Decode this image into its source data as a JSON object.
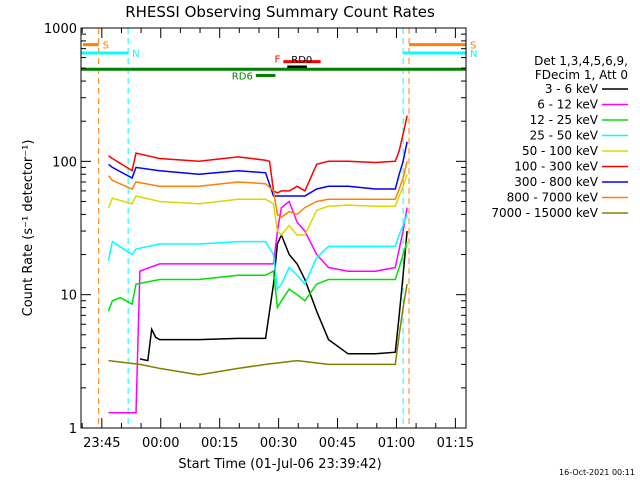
{
  "chart_data": {
    "type": "line",
    "title": "RHESSI Observing Summary Count Rates",
    "xlabel": "Start Time (01-Jul-06 23:39:42)",
    "ylabel": "Count Rate (s⁻¹ detector⁻¹)",
    "yscale": "log",
    "ylim": [
      1,
      1000
    ],
    "x_unit": "minutes after 23:39:42",
    "xlim": [
      0,
      98
    ],
    "x_ticks": [
      {
        "label": "23:45",
        "x": 5.3
      },
      {
        "label": "00:00",
        "x": 20.3
      },
      {
        "label": "00:15",
        "x": 35.3
      },
      {
        "label": "00:30",
        "x": 50.3
      },
      {
        "label": "00:45",
        "x": 65.3
      },
      {
        "label": "01:00",
        "x": 80.3
      },
      {
        "label": "01:15",
        "x": 95.3
      }
    ],
    "y_ticks": [
      {
        "label": "1",
        "y": 1
      },
      {
        "label": "10",
        "y": 10
      },
      {
        "label": "100",
        "y": 100
      },
      {
        "label": "1000",
        "y": 1000
      }
    ],
    "legend": {
      "header": [
        "Det 1,3,4,5,6,9,",
        "FDecim 1, Att 0"
      ],
      "placement": "right"
    },
    "series": [
      {
        "name": "3 - 6 keV",
        "color": "#000000",
        "x": [
          15,
          17,
          18,
          19,
          20,
          30,
          40,
          47,
          49,
          50,
          51,
          53,
          55,
          57,
          60,
          63,
          68,
          75,
          80,
          81,
          82,
          83
        ],
        "y": [
          3.3,
          3.2,
          5.5,
          4.8,
          4.6,
          4.6,
          4.7,
          4.7,
          12,
          24,
          28,
          20,
          17,
          13,
          7.5,
          4.6,
          3.6,
          3.6,
          3.7,
          7,
          14,
          30
        ]
      },
      {
        "name": "6 - 12 keV",
        "color": "#ff00ff",
        "x": [
          7,
          14,
          15,
          20,
          30,
          40,
          47,
          49,
          50,
          51,
          53,
          55,
          57,
          60,
          63,
          68,
          75,
          80,
          81,
          82,
          83
        ],
        "y": [
          1.3,
          1.3,
          15,
          17,
          17,
          17,
          17,
          17,
          30,
          45,
          50,
          35,
          30,
          20,
          16,
          15,
          15,
          16,
          22,
          30,
          45
        ]
      },
      {
        "name": "12 - 25 keV",
        "color": "#00e000",
        "x": [
          7,
          8,
          10,
          13,
          14,
          20,
          30,
          40,
          47,
          49,
          50,
          51,
          53,
          55,
          57,
          60,
          63,
          68,
          75,
          80,
          81,
          82,
          83
        ],
        "y": [
          7.5,
          9,
          9.5,
          8.5,
          12,
          13,
          13,
          14,
          14,
          15,
          8,
          9,
          11,
          10,
          9,
          12,
          13,
          13,
          13,
          13,
          16,
          20,
          25
        ]
      },
      {
        "name": "25 - 50 keV",
        "color": "#00ffff",
        "x": [
          7,
          8,
          13,
          14,
          20,
          30,
          40,
          47,
          49,
          50,
          51,
          53,
          55,
          57,
          60,
          63,
          68,
          75,
          80,
          81,
          82,
          83
        ],
        "y": [
          18,
          25,
          20,
          22,
          24,
          24,
          25,
          25,
          20,
          11,
          12,
          16,
          14,
          12,
          19,
          23,
          23,
          23,
          23,
          28,
          33,
          40
        ]
      },
      {
        "name": "50 - 100 keV",
        "color": "#d8d800",
        "x": [
          7,
          8,
          13,
          14,
          20,
          30,
          40,
          47,
          49,
          50,
          51,
          53,
          55,
          57,
          60,
          63,
          68,
          75,
          80,
          81,
          82,
          83
        ],
        "y": [
          45,
          53,
          48,
          55,
          50,
          48,
          52,
          52,
          48,
          30,
          28,
          33,
          28,
          28,
          43,
          46,
          47,
          46,
          46,
          55,
          65,
          80
        ]
      },
      {
        "name": "100 - 300 keV",
        "color": "#ff0000",
        "x": [
          7,
          8,
          13,
          14,
          20,
          30,
          40,
          47,
          48,
          49,
          50,
          51,
          53,
          55,
          57,
          60,
          63,
          68,
          75,
          80,
          81,
          82,
          83
        ],
        "y": [
          110,
          105,
          85,
          115,
          105,
          100,
          108,
          102,
          100,
          60,
          58,
          60,
          60,
          65,
          60,
          95,
          100,
          100,
          98,
          100,
          120,
          160,
          220
        ]
      },
      {
        "name": "300 - 800 keV",
        "color": "#0000ff",
        "x": [
          7,
          8,
          13,
          14,
          20,
          30,
          40,
          47,
          49,
          50,
          51,
          53,
          55,
          57,
          60,
          63,
          68,
          75,
          80,
          81,
          82,
          83
        ],
        "y": [
          95,
          90,
          75,
          90,
          85,
          80,
          85,
          82,
          55,
          55,
          55,
          55,
          55,
          55,
          62,
          65,
          65,
          62,
          62,
          80,
          100,
          140
        ]
      },
      {
        "name": "800 - 7000 keV",
        "color": "#ff8000",
        "x": [
          7,
          8,
          13,
          14,
          20,
          30,
          40,
          47,
          49,
          50,
          51,
          53,
          55,
          57,
          60,
          63,
          68,
          75,
          80,
          81,
          82,
          83
        ],
        "y": [
          78,
          72,
          62,
          70,
          65,
          65,
          70,
          68,
          60,
          40,
          38,
          42,
          40,
          45,
          50,
          52,
          52,
          52,
          52,
          62,
          75,
          100
        ]
      },
      {
        "name": "7000 - 15000 keV",
        "color": "#808000",
        "x": [
          7,
          15,
          20,
          30,
          40,
          47,
          55,
          63,
          68,
          75,
          80,
          81,
          82,
          83
        ],
        "y": [
          3.2,
          3.0,
          2.8,
          2.5,
          2.8,
          3.0,
          3.2,
          3.0,
          3.0,
          3.0,
          3.0,
          5,
          8,
          12
        ]
      }
    ],
    "segments": [
      {
        "label": "S",
        "color": "#ff8000",
        "x1": 0.5,
        "x2": 4.5,
        "y": 750
      },
      {
        "label": "S",
        "color": "#ff8000",
        "x1": 83.5,
        "x2": 98,
        "y": 750
      },
      {
        "label": "N",
        "color": "#00ffff",
        "x1": 0,
        "x2": 12,
        "y": 650
      },
      {
        "label": "N",
        "color": "#00ffff",
        "x1": 82,
        "x2": 98,
        "y": 650
      },
      {
        "label": "F",
        "color": "#ff0000",
        "x1": 51.5,
        "x2": 61,
        "y": 560
      },
      {
        "label": "RD0",
        "color": "#000000",
        "x1": 52.5,
        "x2": 57.5,
        "y": 510
      },
      {
        "label": "RD6",
        "color": "#008000",
        "x1": 44.5,
        "x2": 49.5,
        "y": 440
      },
      {
        "label": "",
        "color": "#008000",
        "x1": 0,
        "x2": 98,
        "y": 490
      }
    ],
    "vlines": [
      {
        "color": "#ff8000",
        "x": 4.5
      },
      {
        "color": "#00ffff",
        "x": 12
      },
      {
        "color": "#00ffff",
        "x": 82
      },
      {
        "color": "#ff8000",
        "x": 83.5
      },
      {
        "color": "#00ffff",
        "x": 98
      }
    ],
    "footer": "16-Oct-2021 00:11"
  }
}
